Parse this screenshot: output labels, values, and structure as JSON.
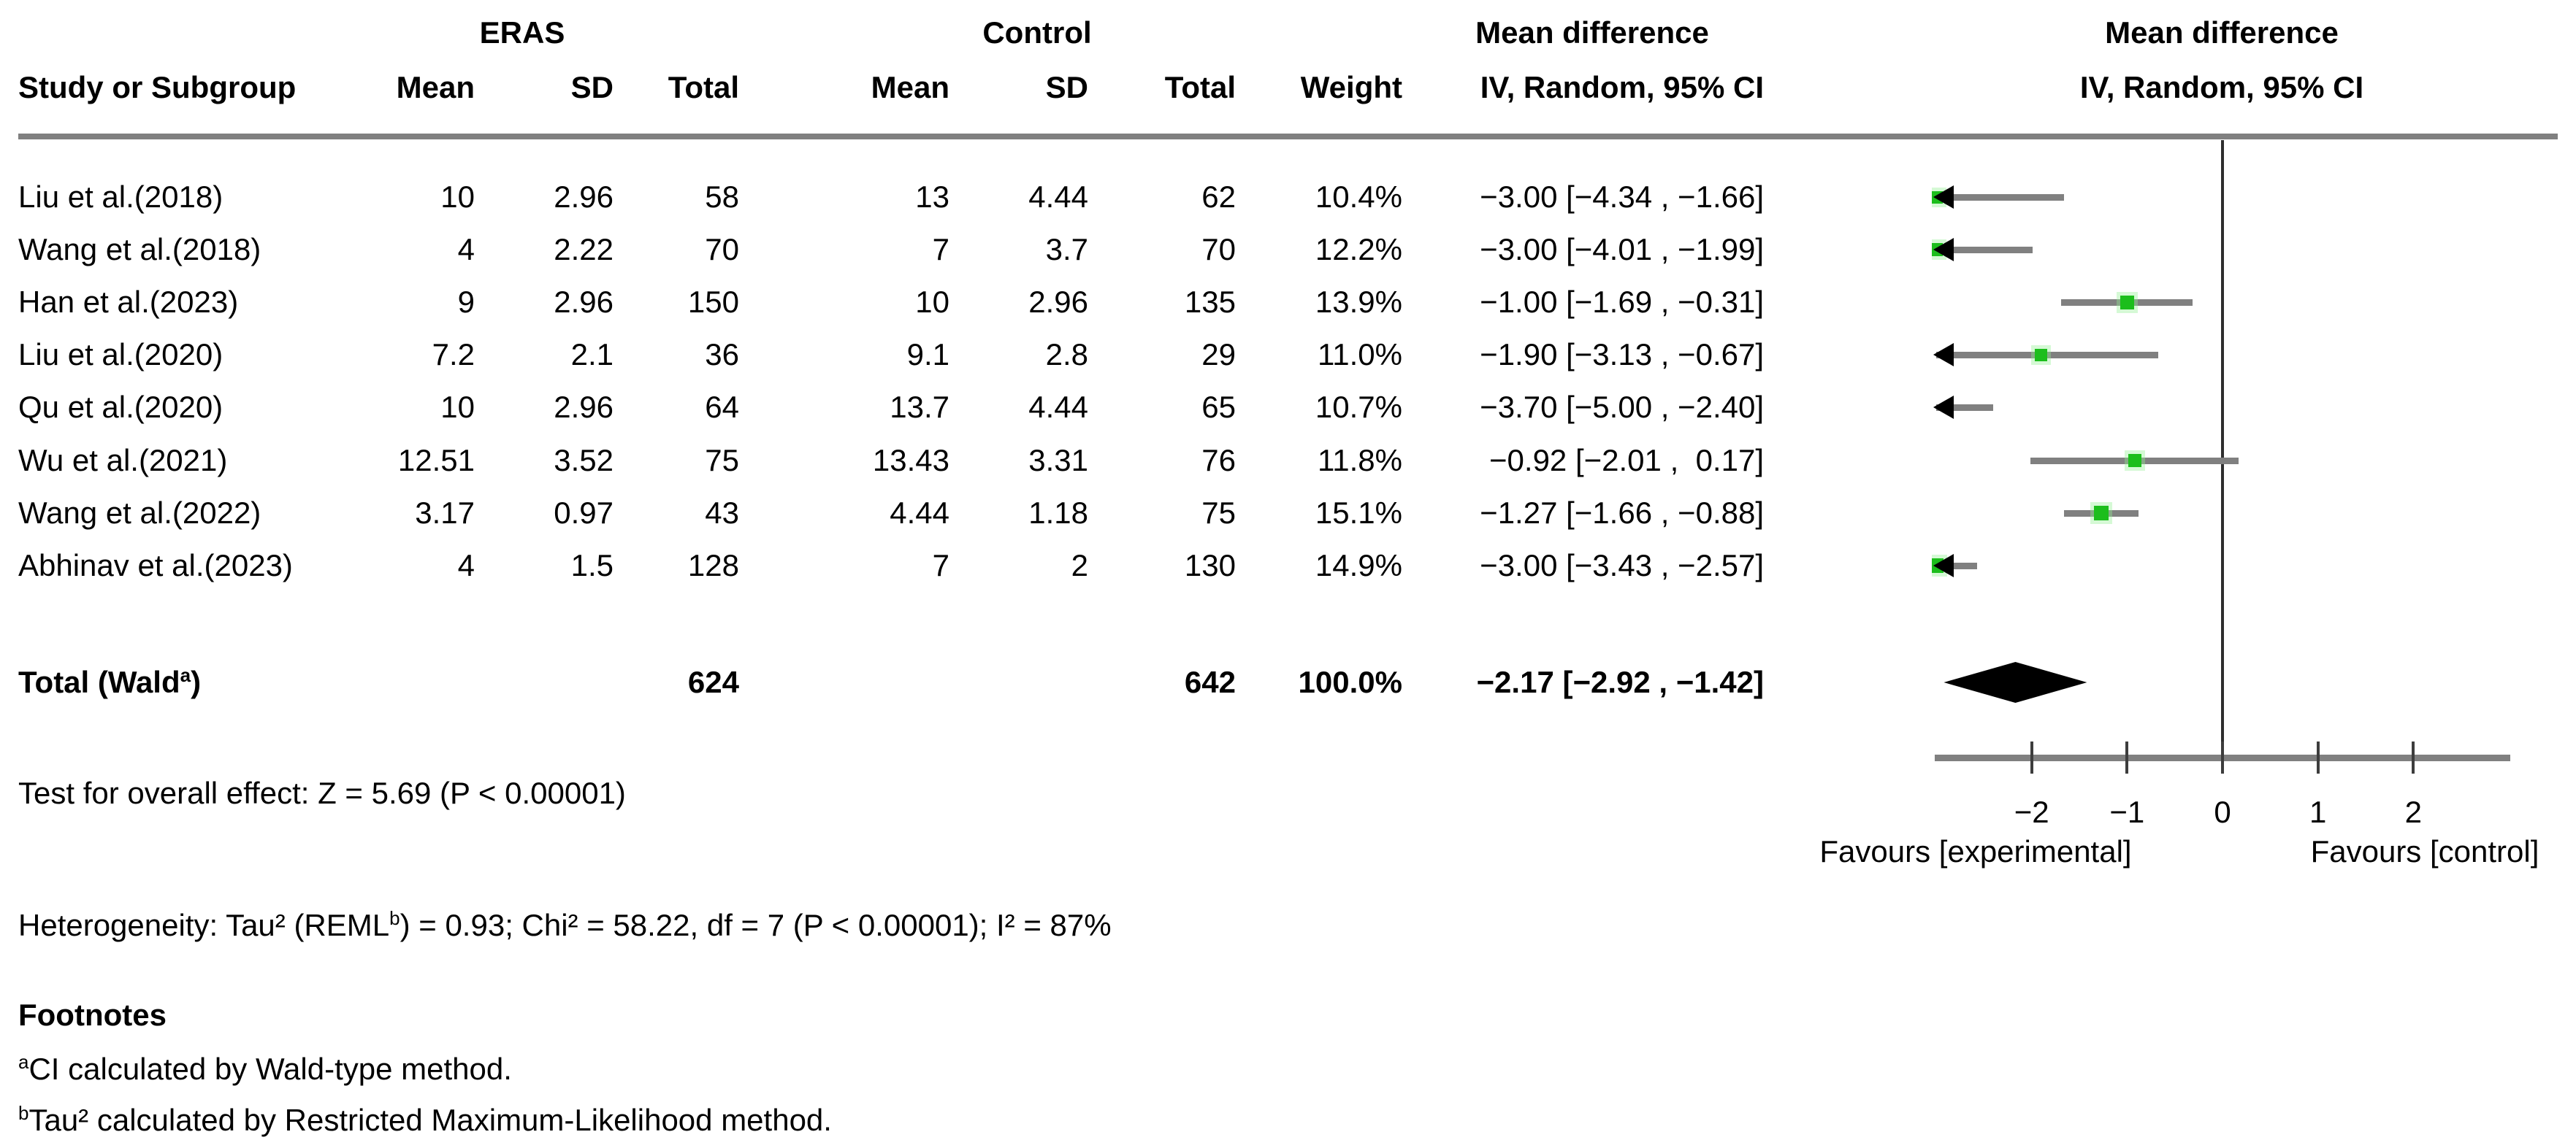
{
  "figure": {
    "kind": "forest-plot-figure"
  },
  "colors": {
    "green": "#1CBE1C",
    "gray": "#808080",
    "diamond": "#000000",
    "zero_line": "#2e2e2e"
  },
  "table": {
    "group_headers": {
      "eras": "ERAS",
      "control": "Control",
      "md_text_col": "Mean difference",
      "md_plot_col": "Mean difference"
    },
    "col_headers": {
      "study": "Study or Subgroup",
      "mean": "Mean",
      "sd": "SD",
      "total": "Total",
      "cmean": "Mean",
      "csd": "SD",
      "ctotal": "Total",
      "weight": "Weight",
      "ci": "IV, Random, 95% CI",
      "ci_plot": "IV, Random, 95% CI"
    },
    "rows": [
      {
        "study": "Liu et al.(2018)",
        "mean": "10",
        "sd": "2.96",
        "total": "58",
        "cmean": "13",
        "csd": "4.44",
        "ctotal": "62",
        "weight": "10.4%",
        "ci": "−3.00 [−4.34 , −1.66]",
        "est": -3.0,
        "lo": -4.34,
        "hi": -1.66,
        "weight_pct": 10.4
      },
      {
        "study": "Wang et al.(2018)",
        "mean": "4",
        "sd": "2.22",
        "total": "70",
        "cmean": "7",
        "csd": "3.7",
        "ctotal": "70",
        "weight": "12.2%",
        "ci": "−3.00 [−4.01 , −1.99]",
        "est": -3.0,
        "lo": -4.01,
        "hi": -1.99,
        "weight_pct": 12.2
      },
      {
        "study": "Han et al.(2023)",
        "mean": "9",
        "sd": "2.96",
        "total": "150",
        "cmean": "10",
        "csd": "2.96",
        "ctotal": "135",
        "weight": "13.9%",
        "ci": "−1.00 [−1.69 , −0.31]",
        "est": -1.0,
        "lo": -1.69,
        "hi": -0.31,
        "weight_pct": 13.9
      },
      {
        "study": "Liu et al.(2020)",
        "mean": "7.2",
        "sd": "2.1",
        "total": "36",
        "cmean": "9.1",
        "csd": "2.8",
        "ctotal": "29",
        "weight": "11.0%",
        "ci": "−1.90 [−3.13 , −0.67]",
        "est": -1.9,
        "lo": -3.13,
        "hi": -0.67,
        "weight_pct": 11.0
      },
      {
        "study": "Qu et al.(2020)",
        "mean": "10",
        "sd": "2.96",
        "total": "64",
        "cmean": "13.7",
        "csd": "4.44",
        "ctotal": "65",
        "weight": "10.7%",
        "ci": "−3.70 [−5.00 , −2.40]",
        "est": -3.7,
        "lo": -5.0,
        "hi": -2.4,
        "weight_pct": 10.7
      },
      {
        "study": "Wu et al.(2021)",
        "mean": "12.51",
        "sd": "3.52",
        "total": "75",
        "cmean": "13.43",
        "csd": "3.31",
        "ctotal": "76",
        "weight": "11.8%",
        "ci": "−0.92 [−2.01 ,  0.17]",
        "est": -0.92,
        "lo": -2.01,
        "hi": 0.17,
        "weight_pct": 11.8
      },
      {
        "study": "Wang et al.(2022)",
        "mean": "3.17",
        "sd": "0.97",
        "total": "43",
        "cmean": "4.44",
        "csd": "1.18",
        "ctotal": "75",
        "weight": "15.1%",
        "ci": "−1.27 [−1.66 , −0.88]",
        "est": -1.27,
        "lo": -1.66,
        "hi": -0.88,
        "weight_pct": 15.1
      },
      {
        "study": "Abhinav et al.(2023)",
        "mean": "4",
        "sd": "1.5",
        "total": "128",
        "cmean": "7",
        "csd": "2",
        "ctotal": "130",
        "weight": "14.9%",
        "ci": "−3.00 [−3.43 , −2.57]",
        "est": -3.0,
        "lo": -3.43,
        "hi": -2.57,
        "weight_pct": 14.9
      }
    ],
    "total_row": {
      "label_pre": "Total (Wald",
      "label_sup": "a",
      "label_post": ")",
      "total": "624",
      "ctotal": "642",
      "weight": "100.0%",
      "ci": "−2.17 [−2.92 , −1.42]",
      "est": -2.17,
      "lo": -2.92,
      "hi": -1.42
    }
  },
  "stats": {
    "overall_effect": "Test for overall effect: Z = 5.69 (P < 0.00001)",
    "heterogeneity_pre": "Heterogeneity: Tau² (REML",
    "heterogeneity_sup": "b",
    "heterogeneity_post": ") = 0.93; Chi² = 58.22, df = 7 (P < 0.00001); I² = 87%"
  },
  "footnotes": {
    "title": "Footnotes",
    "a_sup": "a",
    "a_text": "CI calculated by Wald-type method.",
    "b_sup": "b",
    "b_text": "Tau² calculated by Restricted Maximum-Likelihood method."
  },
  "axis": {
    "min": -3,
    "max": 3,
    "ticks": [
      {
        "v": -2,
        "label": "−2"
      },
      {
        "v": -1,
        "label": "−1"
      },
      {
        "v": 0,
        "label": "0"
      },
      {
        "v": 1,
        "label": "1"
      },
      {
        "v": 2,
        "label": "2"
      }
    ],
    "favours_left": "Favours [experimental]",
    "favours_right": "Favours [control]"
  },
  "chart_data": {
    "type": "scatter",
    "variant": "forest_plot",
    "effect_measure": "Mean difference",
    "model": "IV, Random, 95% CI",
    "xlim": [
      -3,
      3
    ],
    "x_ticks": [
      -2,
      -1,
      0,
      1,
      2
    ],
    "xlabel_left": "Favours [experimental]",
    "xlabel_right": "Favours [control]",
    "studies": [
      {
        "name": "Liu et al.(2018)",
        "eras_mean": 10,
        "eras_sd": 2.96,
        "eras_n": 58,
        "control_mean": 13,
        "control_sd": 4.44,
        "control_n": 62,
        "weight_pct": 10.4,
        "md": -3.0,
        "ci": [
          -4.34,
          -1.66
        ]
      },
      {
        "name": "Wang et al.(2018)",
        "eras_mean": 4,
        "eras_sd": 2.22,
        "eras_n": 70,
        "control_mean": 7,
        "control_sd": 3.7,
        "control_n": 70,
        "weight_pct": 12.2,
        "md": -3.0,
        "ci": [
          -4.01,
          -1.99
        ]
      },
      {
        "name": "Han et al.(2023)",
        "eras_mean": 9,
        "eras_sd": 2.96,
        "eras_n": 150,
        "control_mean": 10,
        "control_sd": 2.96,
        "control_n": 135,
        "weight_pct": 13.9,
        "md": -1.0,
        "ci": [
          -1.69,
          -0.31
        ]
      },
      {
        "name": "Liu et al.(2020)",
        "eras_mean": 7.2,
        "eras_sd": 2.1,
        "eras_n": 36,
        "control_mean": 9.1,
        "control_sd": 2.8,
        "control_n": 29,
        "weight_pct": 11.0,
        "md": -1.9,
        "ci": [
          -3.13,
          -0.67
        ]
      },
      {
        "name": "Qu et al.(2020)",
        "eras_mean": 10,
        "eras_sd": 2.96,
        "eras_n": 64,
        "control_mean": 13.7,
        "control_sd": 4.44,
        "control_n": 65,
        "weight_pct": 10.7,
        "md": -3.7,
        "ci": [
          -5.0,
          -2.4
        ]
      },
      {
        "name": "Wu et al.(2021)",
        "eras_mean": 12.51,
        "eras_sd": 3.52,
        "eras_n": 75,
        "control_mean": 13.43,
        "control_sd": 3.31,
        "control_n": 76,
        "weight_pct": 11.8,
        "md": -0.92,
        "ci": [
          -2.01,
          0.17
        ]
      },
      {
        "name": "Wang et al.(2022)",
        "eras_mean": 3.17,
        "eras_sd": 0.97,
        "eras_n": 43,
        "control_mean": 4.44,
        "control_sd": 1.18,
        "control_n": 75,
        "weight_pct": 15.1,
        "md": -1.27,
        "ci": [
          -1.66,
          -0.88
        ]
      },
      {
        "name": "Abhinav et al.(2023)",
        "eras_mean": 4,
        "eras_sd": 1.5,
        "eras_n": 128,
        "control_mean": 7,
        "control_sd": 2,
        "control_n": 130,
        "weight_pct": 14.9,
        "md": -3.0,
        "ci": [
          -3.43,
          -2.57
        ]
      }
    ],
    "total": {
      "label": "Total (Wald a)",
      "eras_n": 624,
      "control_n": 642,
      "weight_pct": 100.0,
      "md": -2.17,
      "ci": [
        -2.92,
        -1.42
      ]
    },
    "overall_effect_test": "Z = 5.69 (P < 0.00001)",
    "heterogeneity": {
      "tau2": 0.93,
      "tau2_method": "REML b",
      "chi2": 58.22,
      "df": 7,
      "p": "< 0.00001",
      "i2_pct": 87
    }
  }
}
